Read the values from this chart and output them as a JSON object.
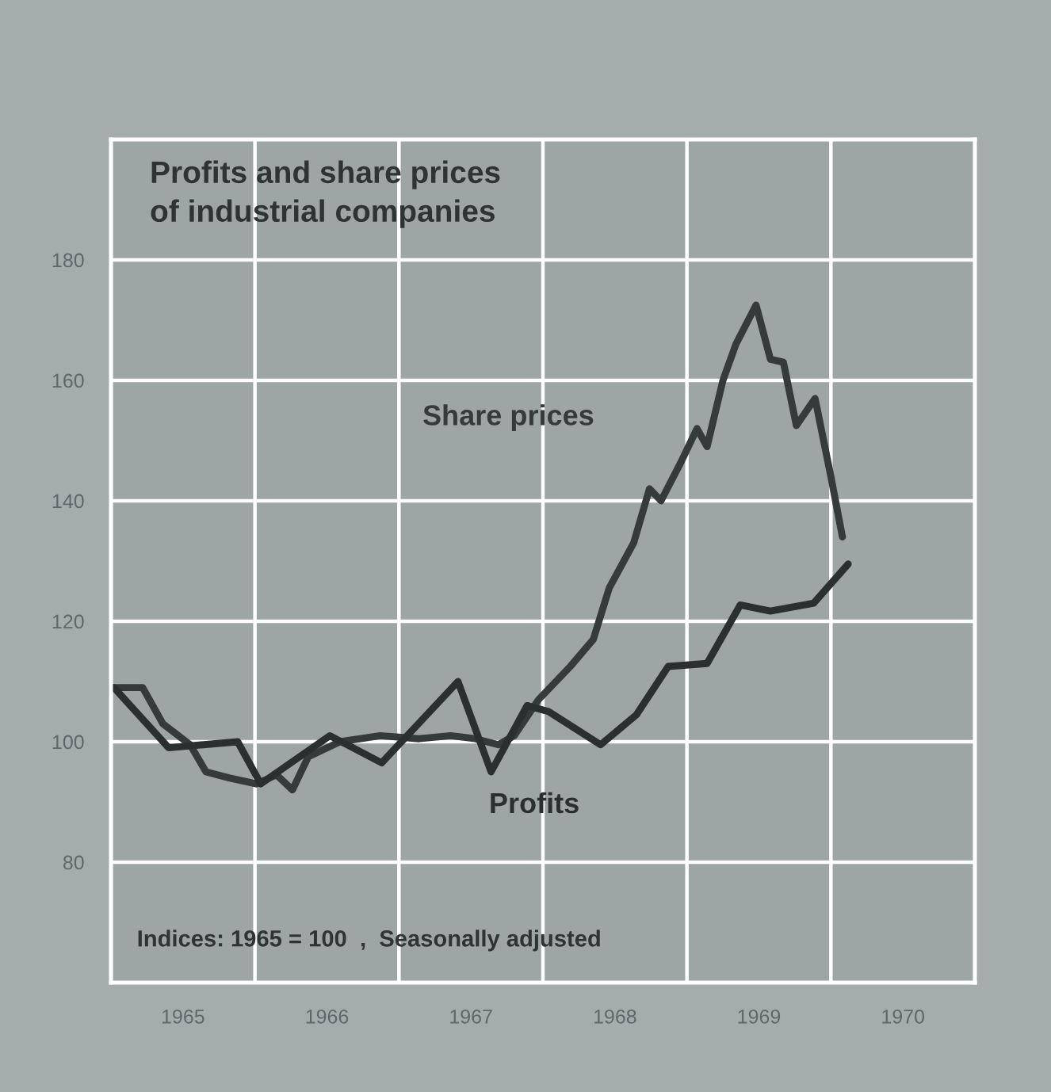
{
  "chart_data": {
    "type": "line",
    "title": "Profits and share prices\nof industrial companies",
    "annotations": [
      "Indices: 1965 = 100  ,  Seasonally adjusted"
    ],
    "xlim": [
      1965,
      1971
    ],
    "ylim": [
      60,
      200
    ],
    "xticks": [
      {
        "value": 1965,
        "label": null
      },
      {
        "value": 1965.5,
        "label": "1965"
      },
      {
        "value": 1966,
        "label": null
      },
      {
        "value": 1966.5,
        "label": "1966"
      },
      {
        "value": 1967,
        "label": null
      },
      {
        "value": 1967.5,
        "label": "1967"
      },
      {
        "value": 1968,
        "label": null
      },
      {
        "value": 1968.5,
        "label": "1968"
      },
      {
        "value": 1969,
        "label": null
      },
      {
        "value": 1969.5,
        "label": "1969"
      },
      {
        "value": 1970,
        "label": null
      },
      {
        "value": 1970.5,
        "label": "1970"
      },
      {
        "value": 1971,
        "label": null
      }
    ],
    "yticks": [
      80,
      100,
      120,
      140,
      160,
      180
    ],
    "grid": true,
    "series": [
      {
        "name": "Share prices",
        "color": "#353b3b",
        "x": [
          1965.02,
          1965.22,
          1965.36,
          1965.55,
          1965.66,
          1965.82,
          1966.01,
          1966.15,
          1966.26,
          1966.37,
          1966.59,
          1966.87,
          1967.14,
          1967.36,
          1967.53,
          1967.69,
          1967.8,
          1967.97,
          1968.19,
          1968.35,
          1968.46,
          1968.63,
          1968.74,
          1968.82,
          1968.96,
          1969.07,
          1969.14,
          1969.25,
          1969.34,
          1969.48,
          1969.58,
          1969.67,
          1969.76,
          1969.89,
          1970.0,
          1970.08
        ],
        "values": [
          109,
          109,
          103,
          99.5,
          95,
          94,
          93,
          94.5,
          92,
          97.5,
          100,
          101,
          100.5,
          101,
          100.5,
          99.5,
          101,
          107,
          112.5,
          117,
          125.5,
          133,
          142,
          140,
          146.5,
          152,
          149,
          160,
          166,
          172.5,
          163.5,
          163,
          152.5,
          157,
          144,
          134
        ]
      },
      {
        "name": "Profits",
        "color": "#2a2f2f",
        "x": [
          1965.02,
          1965.4,
          1965.88,
          1966.04,
          1966.52,
          1966.88,
          1967.41,
          1967.64,
          1967.89,
          1968.04,
          1968.4,
          1968.65,
          1968.87,
          1969.14,
          1969.37,
          1969.58,
          1969.88,
          1970.12
        ],
        "values": [
          109,
          99,
          100,
          93,
          101,
          96.5,
          110,
          95,
          106,
          105,
          99.5,
          104.5,
          112.5,
          113,
          122.7,
          121.7,
          123,
          129.5
        ]
      }
    ]
  }
}
